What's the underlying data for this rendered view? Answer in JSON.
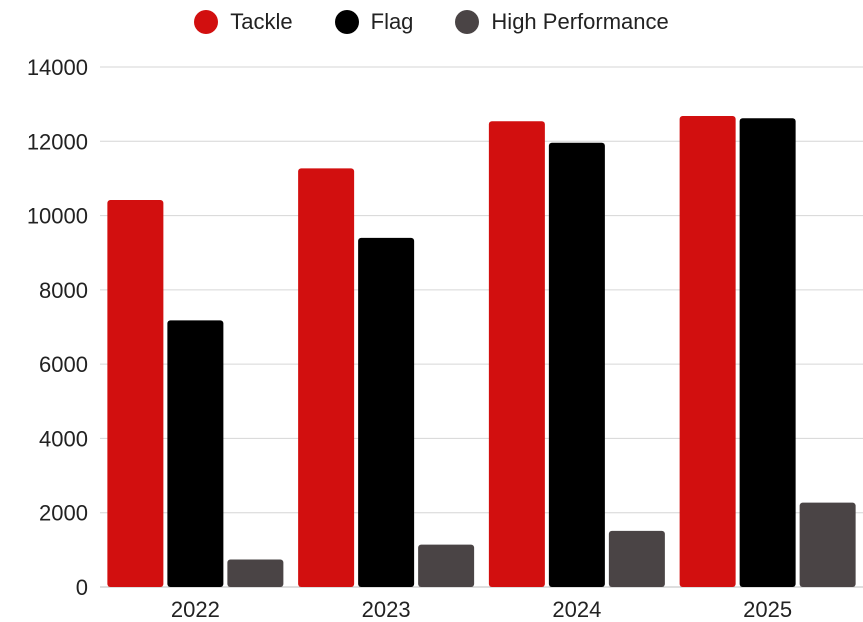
{
  "chart_data": {
    "type": "bar",
    "categories": [
      "2022",
      "2023",
      "2024",
      "2025"
    ],
    "series": [
      {
        "name": "Tackle",
        "color": "#d20f0f",
        "values": [
          10420,
          11270,
          12540,
          12680
        ]
      },
      {
        "name": "Flag",
        "color": "#000000",
        "values": [
          7180,
          9400,
          11960,
          12620
        ]
      },
      {
        "name": "High Performance",
        "color": "#4a4445",
        "values": [
          740,
          1140,
          1510,
          2270
        ]
      }
    ],
    "ylim": [
      0,
      14000
    ],
    "yticks": [
      0,
      2000,
      4000,
      6000,
      8000,
      10000,
      12000,
      14000
    ],
    "grid": true,
    "legend_position": "top-center",
    "title": "",
    "xlabel": "",
    "ylabel": ""
  }
}
